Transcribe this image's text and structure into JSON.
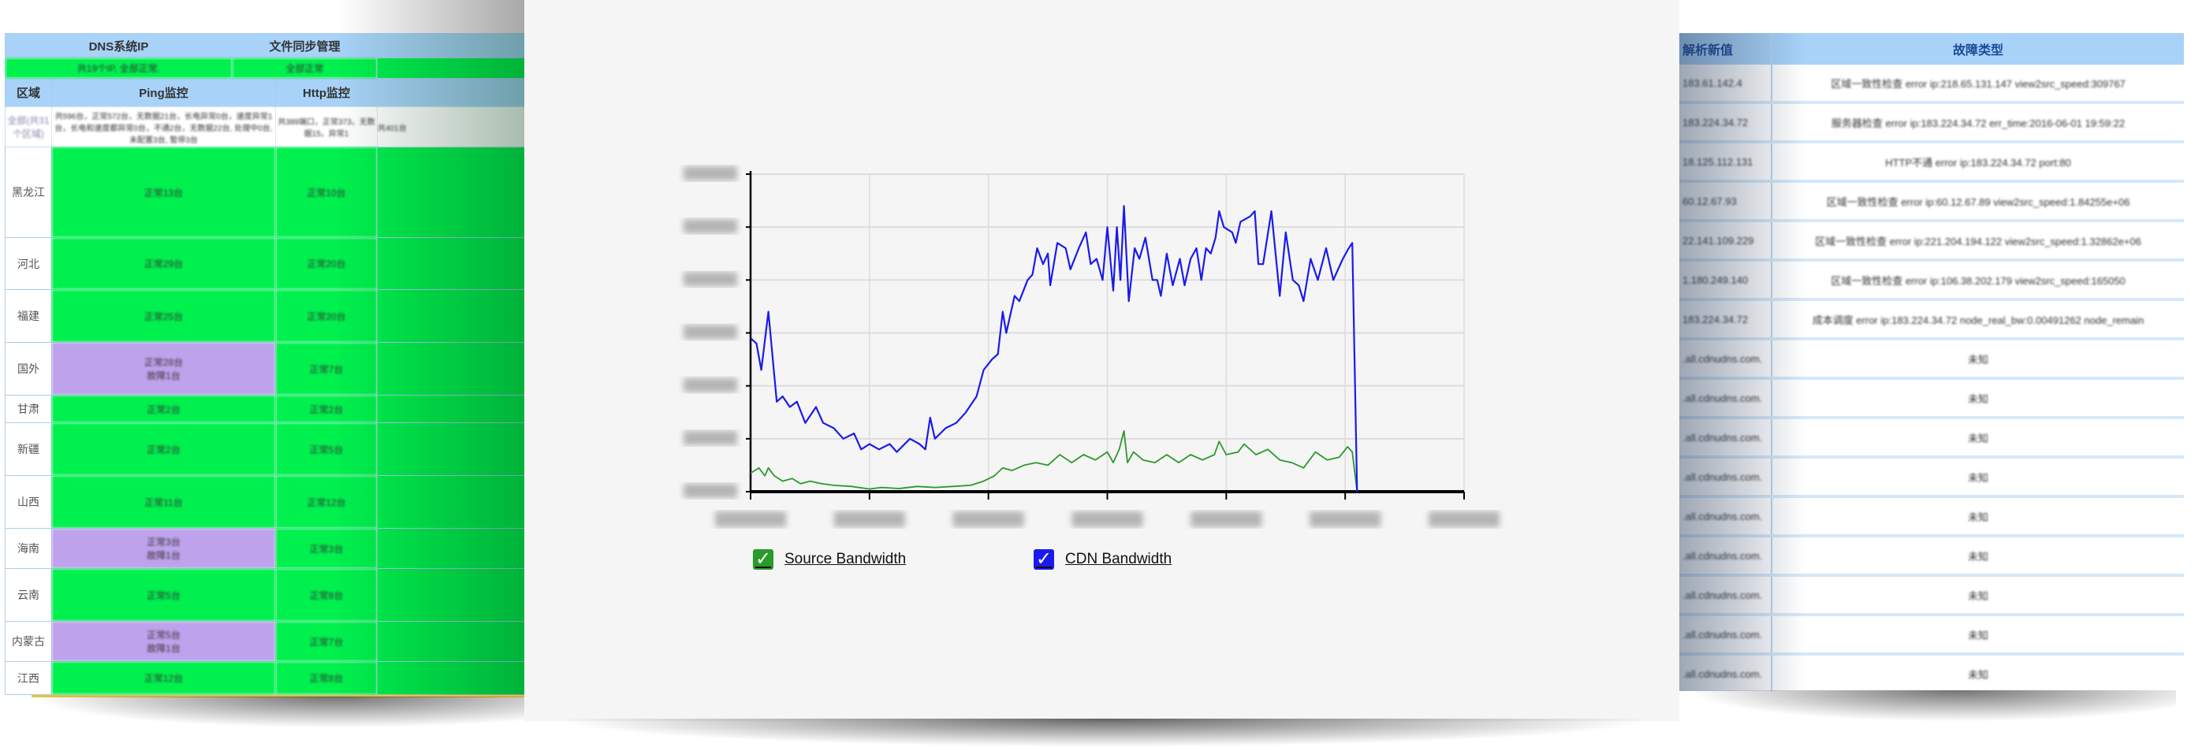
{
  "left_table": {
    "top_headers": [
      "DNS系统IP",
      "文件同步管理"
    ],
    "top_status": [
      "共19个IP, 全部正常.",
      "全部正常"
    ],
    "headers": [
      "区域",
      "Ping监控",
      "Http监控"
    ],
    "summary": {
      "region": "全部(共31个区域)",
      "ping": "共596台，正常572台，无数据21台，长电异常0台，速度异常1台，长电和速度都异常0台，不通2台，无数据22台, 处理中0台, 未配置3台, 暂停3台",
      "http": "共389端口，正常373，无数据15，异常1",
      "extra": "共401台"
    },
    "rows": [
      {
        "region": "黑龙江",
        "ping": [
          "正常13台"
        ],
        "ping_status": "ok",
        "http": "正常10台"
      },
      {
        "region": "河北",
        "ping": [
          "正常29台"
        ],
        "ping_status": "ok",
        "http": "正常20台"
      },
      {
        "region": "福建",
        "ping": [
          "正常25台"
        ],
        "ping_status": "ok",
        "http": "正常20台"
      },
      {
        "region": "国外",
        "ping": [
          "正常28台",
          "故障1台"
        ],
        "ping_status": "warn",
        "http": "正常7台"
      },
      {
        "region": "甘肃",
        "ping": [
          "正常2台"
        ],
        "ping_status": "ok",
        "http": "正常2台"
      },
      {
        "region": "新疆",
        "ping": [
          "正常2台"
        ],
        "ping_status": "ok",
        "http": "正常5台"
      },
      {
        "region": "山西",
        "ping": [
          "正常11台"
        ],
        "ping_status": "ok",
        "http": "正常12台"
      },
      {
        "region": "海南",
        "ping": [
          "正常3台",
          "故障1台"
        ],
        "ping_status": "warn",
        "http": "正常3台"
      },
      {
        "region": "云南",
        "ping": [
          "正常5台"
        ],
        "ping_status": "ok",
        "http": "正常8台"
      },
      {
        "region": "内蒙古",
        "ping": [
          "正常5台",
          "故障1台"
        ],
        "ping_status": "warn",
        "http": "正常7台"
      },
      {
        "region": "江西",
        "ping": [
          "正常12台"
        ],
        "ping_status": "ok",
        "http": "正常8台"
      }
    ]
  },
  "right_table": {
    "headers": [
      "解析新值",
      "故障类型"
    ],
    "rows": [
      [
        "183.61.142.4",
        "区域一致性检查 error ip:218.65.131.147 view2src_speed:309767"
      ],
      [
        "183.224.34.72",
        "服务器检查 error ip:183.224.34.72 err_time:2016-06-01 19:59:22"
      ],
      [
        "18.125.112.131",
        "HTTP不通 error ip:183.224.34.72 port:80"
      ],
      [
        "60.12.67.93",
        "区域一致性检查 error ip:60.12.67.89 view2src_speed:1.84255e+06"
      ],
      [
        "22.141.109.229",
        "区域一致性检查 error ip:221.204.194.122 view2src_speed:1.32862e+06"
      ],
      [
        "1.180.249.140",
        "区域一致性检查 error ip:106.38.202.179 view2src_speed:165050"
      ],
      [
        "183.224.34.72",
        "成本调度 error ip:183.224.34.72 node_real_bw:0.00491262 node_remain"
      ],
      [
        ".all.cdnudns.com.",
        "未知"
      ],
      [
        ".all.cdnudns.com.",
        "未知"
      ],
      [
        ".all.cdnudns.com.",
        "未知"
      ],
      [
        ".all.cdnudns.com.",
        "未知"
      ],
      [
        ".all.cdnudns.com.",
        "未知"
      ],
      [
        ".all.cdnudns.com.",
        "未知"
      ],
      [
        ".all.cdnudns.com.",
        "未知"
      ],
      [
        ".all.cdnudns.com.",
        "未知"
      ],
      [
        ".all.cdnudns.com.",
        "未知"
      ]
    ]
  },
  "colors": {
    "ok": "#00f04e",
    "warn": "#bfa2ec",
    "header": "#a8d2f8",
    "source": "#2a9a2a",
    "cdn": "#1a1aee"
  },
  "chart_data": {
    "type": "line",
    "title": "",
    "xlabel": "",
    "ylabel": "",
    "xlim": [
      0,
      6
    ],
    "ylim": [
      0,
      6
    ],
    "grid": true,
    "legend_position": "bottom-left",
    "tick_labels_legible": false,
    "series": [
      {
        "name": "Source Bandwidth",
        "color": "#2a9a2a",
        "checked": true,
        "points": [
          [
            0,
            0.35
          ],
          [
            0.07,
            0.45
          ],
          [
            0.12,
            0.3
          ],
          [
            0.15,
            0.45
          ],
          [
            0.2,
            0.3
          ],
          [
            0.27,
            0.2
          ],
          [
            0.35,
            0.25
          ],
          [
            0.42,
            0.15
          ],
          [
            0.5,
            0.2
          ],
          [
            0.6,
            0.15
          ],
          [
            0.7,
            0.12
          ],
          [
            0.85,
            0.1
          ],
          [
            1.0,
            0.05
          ],
          [
            1.1,
            0.08
          ],
          [
            1.25,
            0.06
          ],
          [
            1.4,
            0.1
          ],
          [
            1.55,
            0.08
          ],
          [
            1.7,
            0.1
          ],
          [
            1.85,
            0.12
          ],
          [
            1.96,
            0.2
          ],
          [
            2.05,
            0.3
          ],
          [
            2.12,
            0.45
          ],
          [
            2.2,
            0.4
          ],
          [
            2.3,
            0.5
          ],
          [
            2.4,
            0.55
          ],
          [
            2.5,
            0.5
          ],
          [
            2.6,
            0.7
          ],
          [
            2.7,
            0.55
          ],
          [
            2.8,
            0.7
          ],
          [
            2.9,
            0.6
          ],
          [
            3.0,
            0.75
          ],
          [
            3.05,
            0.55
          ],
          [
            3.1,
            0.8
          ],
          [
            3.14,
            1.15
          ],
          [
            3.17,
            0.55
          ],
          [
            3.22,
            0.75
          ],
          [
            3.3,
            0.6
          ],
          [
            3.4,
            0.55
          ],
          [
            3.5,
            0.7
          ],
          [
            3.6,
            0.55
          ],
          [
            3.7,
            0.7
          ],
          [
            3.8,
            0.6
          ],
          [
            3.9,
            0.7
          ],
          [
            3.94,
            0.95
          ],
          [
            4.0,
            0.7
          ],
          [
            4.1,
            0.75
          ],
          [
            4.15,
            0.9
          ],
          [
            4.25,
            0.7
          ],
          [
            4.35,
            0.8
          ],
          [
            4.45,
            0.6
          ],
          [
            4.55,
            0.55
          ],
          [
            4.65,
            0.45
          ],
          [
            4.75,
            0.75
          ],
          [
            4.85,
            0.6
          ],
          [
            4.95,
            0.65
          ],
          [
            5.02,
            0.85
          ],
          [
            5.06,
            0.75
          ],
          [
            5.1,
            0
          ]
        ]
      },
      {
        "name": "CDN Bandwidth",
        "color": "#1a1aee",
        "checked": true,
        "points": [
          [
            0,
            2.9
          ],
          [
            0.05,
            2.8
          ],
          [
            0.09,
            2.3
          ],
          [
            0.15,
            3.4
          ],
          [
            0.22,
            1.7
          ],
          [
            0.27,
            1.8
          ],
          [
            0.33,
            1.6
          ],
          [
            0.39,
            1.7
          ],
          [
            0.46,
            1.3
          ],
          [
            0.55,
            1.6
          ],
          [
            0.61,
            1.3
          ],
          [
            0.7,
            1.2
          ],
          [
            0.78,
            1.0
          ],
          [
            0.87,
            1.1
          ],
          [
            0.93,
            0.8
          ],
          [
            1.0,
            0.9
          ],
          [
            1.08,
            0.8
          ],
          [
            1.17,
            0.9
          ],
          [
            1.23,
            0.75
          ],
          [
            1.34,
            1.0
          ],
          [
            1.42,
            0.9
          ],
          [
            1.47,
            0.8
          ],
          [
            1.51,
            1.4
          ],
          [
            1.55,
            1.0
          ],
          [
            1.64,
            1.2
          ],
          [
            1.73,
            1.3
          ],
          [
            1.81,
            1.5
          ],
          [
            1.9,
            1.8
          ],
          [
            1.96,
            2.3
          ],
          [
            2.03,
            2.5
          ],
          [
            2.08,
            2.6
          ],
          [
            2.12,
            3.4
          ],
          [
            2.15,
            3.0
          ],
          [
            2.22,
            3.7
          ],
          [
            2.26,
            3.6
          ],
          [
            2.33,
            4.0
          ],
          [
            2.37,
            4.1
          ],
          [
            2.41,
            4.6
          ],
          [
            2.46,
            4.3
          ],
          [
            2.5,
            4.5
          ],
          [
            2.52,
            3.9
          ],
          [
            2.58,
            4.7
          ],
          [
            2.65,
            4.6
          ],
          [
            2.69,
            4.2
          ],
          [
            2.76,
            4.6
          ],
          [
            2.82,
            4.9
          ],
          [
            2.86,
            4.3
          ],
          [
            2.91,
            4.4
          ],
          [
            2.96,
            4.0
          ],
          [
            3.0,
            5.0
          ],
          [
            3.05,
            3.8
          ],
          [
            3.08,
            5.0
          ],
          [
            3.11,
            4.0
          ],
          [
            3.14,
            5.4
          ],
          [
            3.18,
            3.6
          ],
          [
            3.23,
            4.6
          ],
          [
            3.27,
            4.4
          ],
          [
            3.32,
            4.8
          ],
          [
            3.38,
            4.0
          ],
          [
            3.42,
            4.0
          ],
          [
            3.45,
            3.7
          ],
          [
            3.5,
            4.5
          ],
          [
            3.55,
            3.9
          ],
          [
            3.61,
            4.4
          ],
          [
            3.65,
            3.9
          ],
          [
            3.7,
            4.4
          ],
          [
            3.75,
            4.6
          ],
          [
            3.79,
            4.0
          ],
          [
            3.83,
            4.6
          ],
          [
            3.87,
            4.5
          ],
          [
            3.91,
            4.8
          ],
          [
            3.94,
            5.3
          ],
          [
            3.98,
            5.0
          ],
          [
            4.05,
            4.9
          ],
          [
            4.08,
            4.7
          ],
          [
            4.12,
            5.1
          ],
          [
            4.2,
            5.2
          ],
          [
            4.24,
            5.3
          ],
          [
            4.27,
            4.3
          ],
          [
            4.31,
            4.3
          ],
          [
            4.38,
            5.3
          ],
          [
            4.45,
            3.7
          ],
          [
            4.5,
            4.9
          ],
          [
            4.56,
            4.0
          ],
          [
            4.61,
            3.9
          ],
          [
            4.65,
            3.6
          ],
          [
            4.71,
            4.4
          ],
          [
            4.77,
            4.0
          ],
          [
            4.84,
            4.6
          ],
          [
            4.9,
            4.0
          ],
          [
            4.98,
            4.4
          ],
          [
            5.03,
            4.6
          ],
          [
            5.06,
            4.7
          ],
          [
            5.1,
            0
          ]
        ]
      }
    ]
  }
}
